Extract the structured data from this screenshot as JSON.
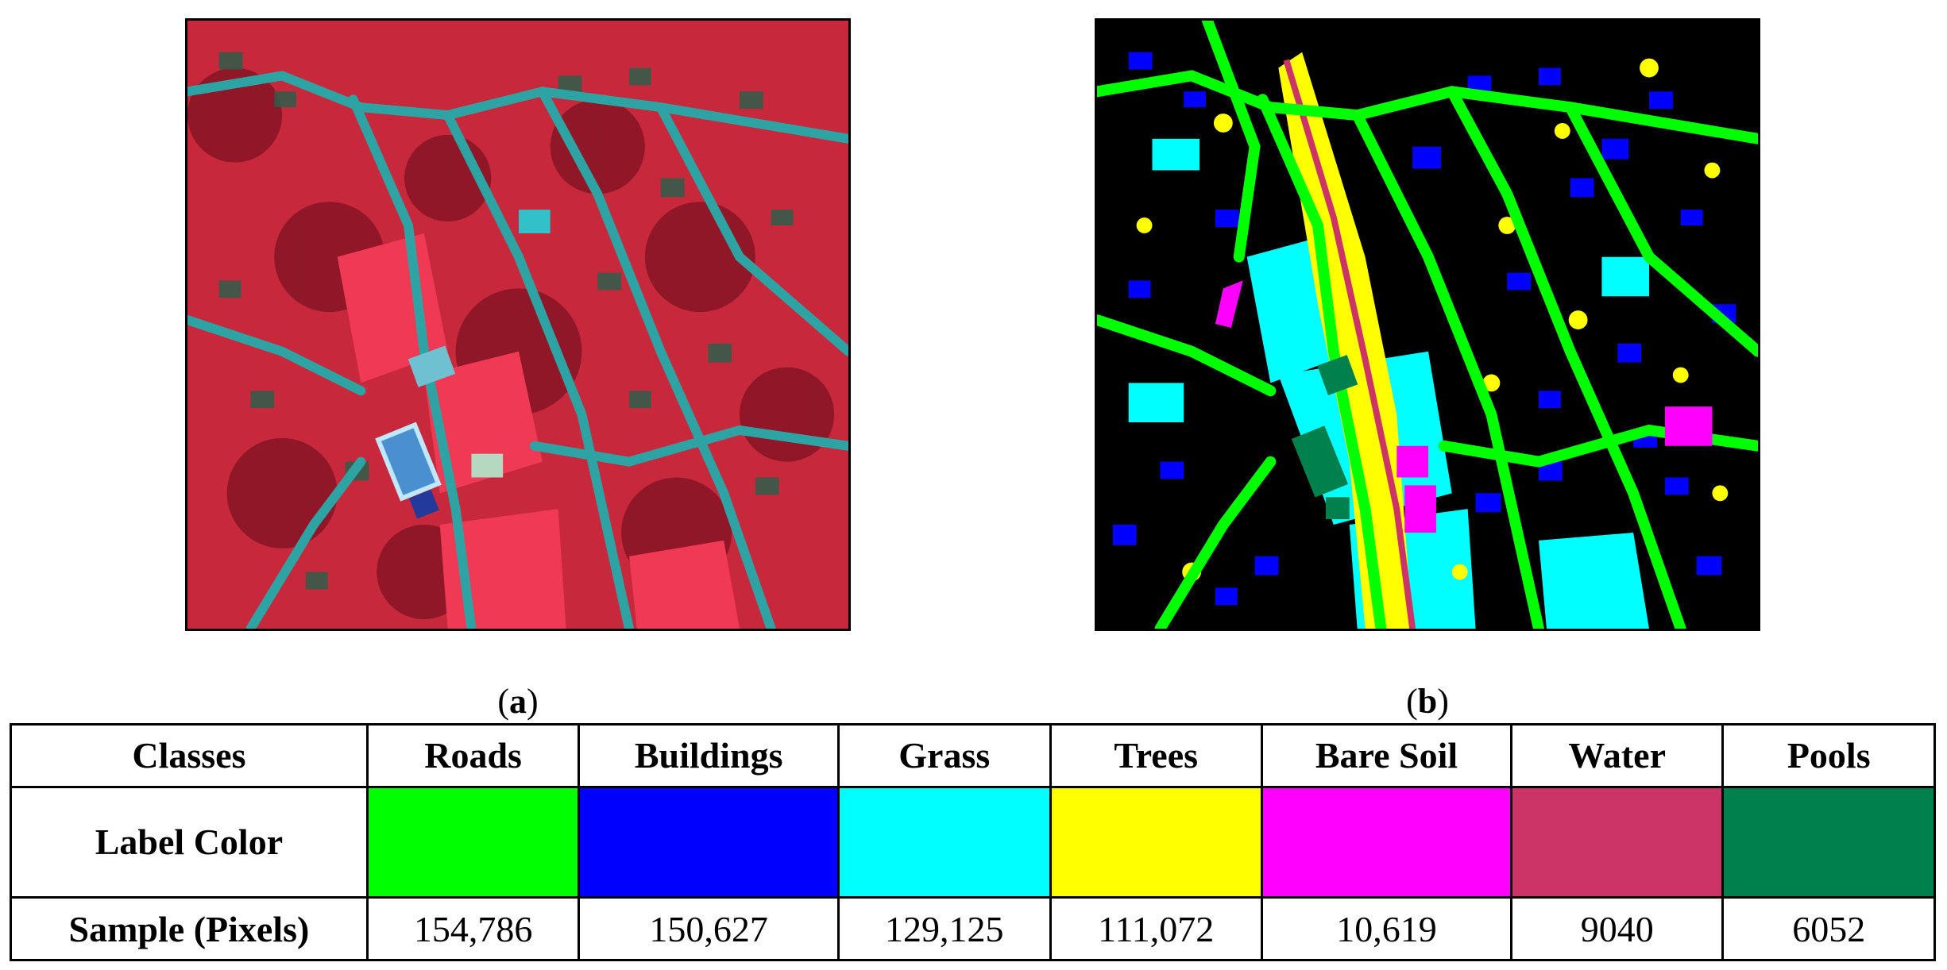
{
  "panels": {
    "a": {
      "open": "(",
      "letter": "a",
      "close": ")"
    },
    "b": {
      "open": "(",
      "letter": "b",
      "close": ")"
    }
  },
  "legend": {
    "header_label": "Classes",
    "color_row_label": "Label Color",
    "sample_row_label": "Sample (Pixels)",
    "classes": [
      {
        "name": "Roads",
        "color": "#00ff00",
        "samples": "154,786"
      },
      {
        "name": "Buildings",
        "color": "#0000ff",
        "samples": "150,627"
      },
      {
        "name": "Grass",
        "color": "#00ffff",
        "samples": "129,125"
      },
      {
        "name": "Trees",
        "color": "#ffff00",
        "samples": "111,072"
      },
      {
        "name": "Bare Soil",
        "color": "#ff00ff",
        "samples": "10,619"
      },
      {
        "name": "Water",
        "color": "#cc3366",
        "samples": "9040"
      },
      {
        "name": "Pools",
        "color": "#00804d",
        "samples": "6052"
      }
    ]
  },
  "colors": {
    "false_color_vegetation": "#d9263a",
    "false_color_roads": "#2c9a9a",
    "map_background": "#000000"
  }
}
